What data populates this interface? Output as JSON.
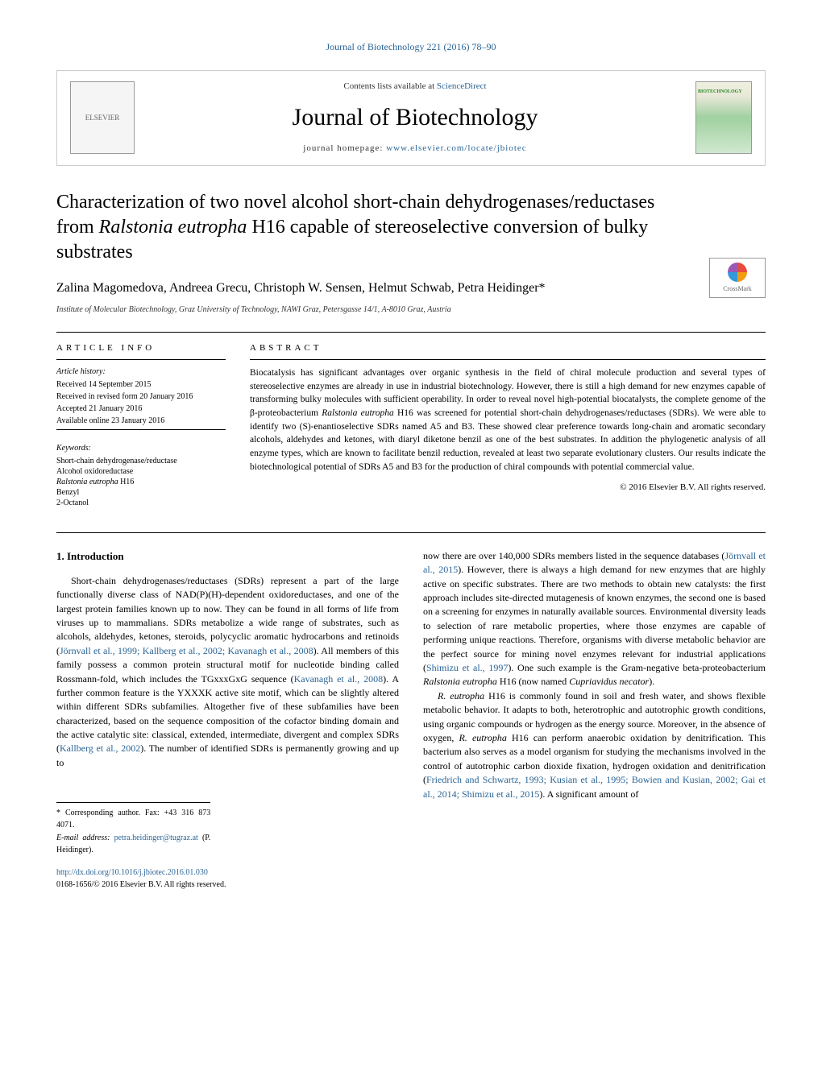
{
  "colors": {
    "link": "#2a6496",
    "text": "#000000",
    "border": "#cccccc",
    "background": "#ffffff"
  },
  "typography": {
    "body_font": "Georgia, 'Times New Roman', serif",
    "body_size_pt": 12,
    "title_size_pt": 24,
    "journal_name_size_pt": 30,
    "abstract_size_pt": 11.5,
    "info_size_pt": 10
  },
  "header": {
    "citation": "Journal of Biotechnology 221 (2016) 78–90",
    "contents_prefix": "Contents lists available at ",
    "contents_link": "ScienceDirect",
    "journal_name": "Journal of Biotechnology",
    "homepage_prefix": "journal homepage: ",
    "homepage_url": "www.elsevier.com/locate/jbiotec",
    "publisher_logo_alt": "ELSEVIER",
    "cover_alt": "Journal of Biotechnology cover"
  },
  "crossmark": {
    "label": "CrossMark"
  },
  "article": {
    "title_part1": "Characterization of two novel alcohol short-chain dehydrogenases/reductases from ",
    "title_species": "Ralstonia eutropha",
    "title_part2": " H16 capable of stereoselective conversion of bulky substrates",
    "authors": "Zalina Magomedova, Andreea Grecu, Christoph W. Sensen, Helmut Schwab, Petra Heidinger*",
    "affiliation": "Institute of Molecular Biotechnology, Graz University of Technology, NAWI Graz, Petersgasse 14/1, A-8010 Graz, Austria"
  },
  "info": {
    "heading": "article info",
    "history_label": "Article history:",
    "history": [
      "Received 14 September 2015",
      "Received in revised form 20 January 2016",
      "Accepted 21 January 2016",
      "Available online 23 January 2016"
    ],
    "keywords_label": "Keywords:",
    "keywords": [
      "Short-chain dehydrogenase/reductase",
      "Alcohol oxidoreductase",
      "<em>Ralstonia eutropha</em> H16",
      "Benzyl",
      "2-Octanol"
    ]
  },
  "abstract": {
    "heading": "abstract",
    "text": "Biocatalysis has significant advantages over organic synthesis in the field of chiral molecule production and several types of stereoselective enzymes are already in use in industrial biotechnology. However, there is still a high demand for new enzymes capable of transforming bulky molecules with sufficient operability. In order to reveal novel high-potential biocatalysts, the complete genome of the β-proteobacterium <em>Ralstonia eutropha</em> H16 was screened for potential short-chain dehydrogenases/reductases (SDRs). We were able to identify two (S)-enantioselective SDRs named A5 and B3. These showed clear preference towards long-chain and aromatic secondary alcohols, aldehydes and ketones, with diaryl diketone benzil as one of the best substrates. In addition the phylogenetic analysis of all enzyme types, which are known to facilitate benzil reduction, revealed at least two separate evolutionary clusters. Our results indicate the biotechnological potential of SDRs A5 and B3 for the production of chiral compounds with potential commercial value.",
    "copyright": "© 2016 Elsevier B.V. All rights reserved."
  },
  "body": {
    "section_heading": "1. Introduction",
    "col1_p1": "Short-chain dehydrogenases/reductases (SDRs) represent a part of the large functionally diverse class of NAD(P)(H)-dependent oxidoreductases, and one of the largest protein families known up to now. They can be found in all forms of life from viruses up to mammalians. SDRs metabolize a wide range of substrates, such as alcohols, aldehydes, ketones, steroids, polycyclic aromatic hydrocarbons and retinoids (<span class=\"ref-link\">Jörnvall et al., 1999; Kallberg et al., 2002; Kavanagh et al., 2008</span>). All members of this family possess a common protein structural motif for nucleotide binding called Rossmann-fold, which includes the TGxxxGxG sequence (<span class=\"ref-link\">Kavanagh et al., 2008</span>). A further common feature is the YXXXK active site motif, which can be slightly altered within different SDRs subfamilies. Altogether five of these subfamilies have been characterized, based on the sequence composition of the cofactor binding domain and the active catalytic site: classical, extended, intermediate, divergent and complex SDRs (<span class=\"ref-link\">Kallberg et al., 2002</span>). The number of identified SDRs is permanently growing and up to",
    "col2_p1": "now there are over 140,000 SDRs members listed in the sequence databases (<span class=\"ref-link\">Jörnvall et al., 2015</span>). However, there is always a high demand for new enzymes that are highly active on specific substrates. There are two methods to obtain new catalysts: the first approach includes site-directed mutagenesis of known enzymes, the second one is based on a screening for enzymes in naturally available sources. Environmental diversity leads to selection of rare metabolic properties, where those enzymes are capable of performing unique reactions. Therefore, organisms with diverse metabolic behavior are the perfect source for mining novel enzymes relevant for industrial applications (<span class=\"ref-link\">Shimizu et al., 1997</span>). One such example is the Gram-negative beta-proteobacterium <em>Ralstonia eutropha</em> H16 (now named <em>Cupriavidus necator</em>).",
    "col2_p2": "<em>R. eutropha</em> H16 is commonly found in soil and fresh water, and shows flexible metabolic behavior. It adapts to both, heterotrophic and autotrophic growth conditions, using organic compounds or hydrogen as the energy source. Moreover, in the absence of oxygen, <em>R. eutropha</em> H16 can perform anaerobic oxidation by denitrification. This bacterium also serves as a model organism for studying the mechanisms involved in the control of autotrophic carbon dioxide fixation, hydrogen oxidation and denitrification (<span class=\"ref-link\">Friedrich and Schwartz, 1993; Kusian et al., 1995; Bowien and Kusian, 2002; Gai et al., 2014; Shimizu et al., 2015</span>). A significant amount of"
  },
  "footnote": {
    "corresponding": "* Corresponding author. Fax: +43 316 873 4071.",
    "email_label": "E-mail address: ",
    "email": "petra.heidinger@tugraz.at",
    "email_suffix": " (P. Heidinger)."
  },
  "doi": {
    "url": "http://dx.doi.org/10.1016/j.jbiotec.2016.01.030",
    "issn_copyright": "0168-1656/© 2016 Elsevier B.V. All rights reserved."
  }
}
